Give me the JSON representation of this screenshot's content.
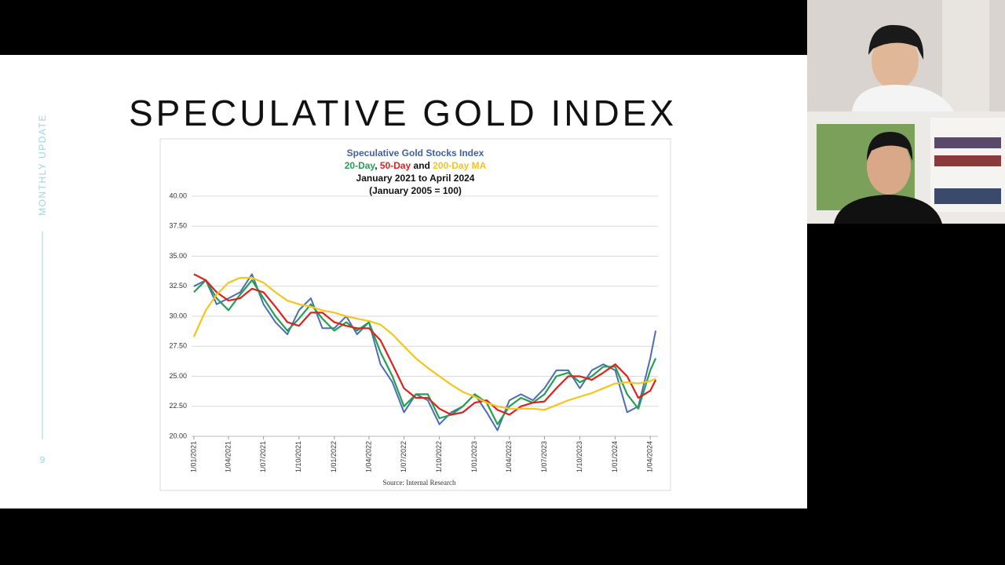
{
  "slide": {
    "title": "SPECULATIVE GOLD INDEX",
    "side_label": "MONTHLY UPDATE",
    "page": 9
  },
  "chart_data": {
    "type": "line",
    "subtitle_joiners": [
      ", ",
      " and "
    ],
    "subtitle_lines": [
      "January 2021 to April 2024",
      "(January 2005 = 100)"
    ],
    "source": "Source: Internal Research",
    "x": [
      "2021-01-01",
      "2021-02-01",
      "2021-03-01",
      "2021-04-01",
      "2021-05-01",
      "2021-06-01",
      "2021-07-01",
      "2021-08-01",
      "2021-09-01",
      "2021-10-01",
      "2021-11-01",
      "2021-12-01",
      "2022-01-01",
      "2022-02-01",
      "2022-03-01",
      "2022-04-01",
      "2022-05-01",
      "2022-06-01",
      "2022-07-01",
      "2022-08-01",
      "2022-09-01",
      "2022-10-01",
      "2022-11-01",
      "2022-12-01",
      "2023-01-01",
      "2023-02-01",
      "2023-03-01",
      "2023-04-01",
      "2023-05-01",
      "2023-06-01",
      "2023-07-01",
      "2023-08-01",
      "2023-09-01",
      "2023-10-01",
      "2023-11-01",
      "2023-12-01",
      "2024-01-01",
      "2024-02-01",
      "2024-03-01",
      "2024-04-01",
      "2024-04-15"
    ],
    "series": [
      {
        "name": "Speculative Gold Stocks Index",
        "color": "#4a6db5",
        "values": [
          32.5,
          33.0,
          31.0,
          31.5,
          32.0,
          33.5,
          31.0,
          29.5,
          28.5,
          30.5,
          31.5,
          29.0,
          29.0,
          30.0,
          28.5,
          29.5,
          26.0,
          24.5,
          22.0,
          23.5,
          23.0,
          21.0,
          22.0,
          22.5,
          23.5,
          22.0,
          20.5,
          23.0,
          23.5,
          23.0,
          24.0,
          25.5,
          25.5,
          24.0,
          25.5,
          26.0,
          25.5,
          22.0,
          22.5,
          26.5,
          28.8
        ]
      },
      {
        "name": "20-Day",
        "color": "#22a052",
        "values": [
          32.0,
          33.0,
          31.5,
          30.5,
          31.8,
          33.0,
          31.5,
          30.0,
          28.8,
          29.8,
          31.0,
          29.8,
          28.8,
          29.5,
          28.8,
          29.5,
          27.0,
          25.0,
          22.5,
          23.5,
          23.5,
          21.5,
          21.8,
          22.5,
          23.5,
          22.8,
          21.0,
          22.5,
          23.2,
          22.8,
          23.5,
          25.0,
          25.3,
          24.5,
          25.0,
          25.8,
          25.8,
          23.5,
          22.3,
          25.5,
          26.5
        ]
      },
      {
        "name": "50-Day",
        "color": "#e0201b",
        "values": [
          33.5,
          33.0,
          32.0,
          31.3,
          31.5,
          32.3,
          32.0,
          30.8,
          29.5,
          29.2,
          30.3,
          30.3,
          29.5,
          29.2,
          29.0,
          29.0,
          28.0,
          26.0,
          24.0,
          23.2,
          23.2,
          22.3,
          21.8,
          22.0,
          22.8,
          23.0,
          22.2,
          21.8,
          22.5,
          22.8,
          22.9,
          24.0,
          25.0,
          25.0,
          24.7,
          25.3,
          26.0,
          25.0,
          23.2,
          23.8,
          24.7
        ]
      },
      {
        "name": "200-Day MA",
        "color": "#f5c518",
        "values": [
          28.3,
          30.5,
          31.8,
          32.8,
          33.2,
          33.2,
          32.8,
          32.0,
          31.3,
          31.0,
          30.8,
          30.5,
          30.3,
          30.0,
          29.8,
          29.6,
          29.3,
          28.5,
          27.5,
          26.5,
          25.7,
          25.0,
          24.3,
          23.7,
          23.3,
          22.8,
          22.5,
          22.3,
          22.3,
          22.3,
          22.2,
          22.6,
          23.0,
          23.3,
          23.6,
          24.0,
          24.4,
          24.5,
          24.4,
          24.6,
          24.8
        ]
      }
    ],
    "xlim": [
      "2020-12-26",
      "2024-04-21"
    ],
    "xticks": [
      {
        "value": "2021-01-01",
        "label": "1/01/2021"
      },
      {
        "value": "2021-04-01",
        "label": "1/04/2021"
      },
      {
        "value": "2021-07-01",
        "label": "1/07/2021"
      },
      {
        "value": "2021-10-01",
        "label": "1/10/2021"
      },
      {
        "value": "2022-01-01",
        "label": "1/01/2022"
      },
      {
        "value": "2022-04-01",
        "label": "1/04/2022"
      },
      {
        "value": "2022-07-01",
        "label": "1/07/2022"
      },
      {
        "value": "2022-10-01",
        "label": "1/10/2022"
      },
      {
        "value": "2023-01-01",
        "label": "1/01/2023"
      },
      {
        "value": "2023-04-01",
        "label": "1/04/2023"
      },
      {
        "value": "2023-07-01",
        "label": "1/07/2023"
      },
      {
        "value": "2023-10-01",
        "label": "1/10/2023"
      },
      {
        "value": "2024-01-01",
        "label": "1/01/2024"
      },
      {
        "value": "2024-04-01",
        "label": "1/04/2024"
      }
    ],
    "ylim": [
      20,
      40
    ],
    "yticks": [
      {
        "value": 20,
        "label": "20.00"
      },
      {
        "value": 22.5,
        "label": "22.50"
      },
      {
        "value": 25,
        "label": "25.00"
      },
      {
        "value": 27.5,
        "label": "27.50"
      },
      {
        "value": 30,
        "label": "30.00"
      },
      {
        "value": 32.5,
        "label": "32.50"
      },
      {
        "value": 35,
        "label": "35.00"
      },
      {
        "value": 37.5,
        "label": "37.50"
      },
      {
        "value": 40,
        "label": "40.00"
      }
    ],
    "grid": true
  }
}
